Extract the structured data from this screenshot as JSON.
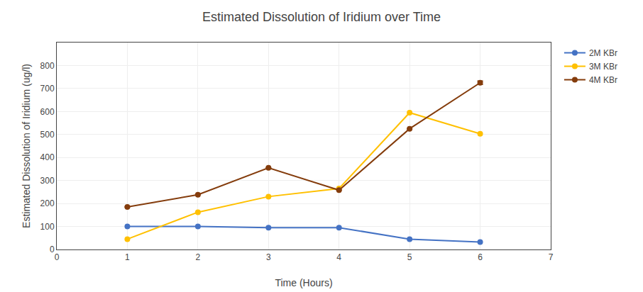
{
  "chart_data": {
    "type": "line",
    "title": "Estimated Dissolution of Iridium over Time",
    "xlabel": "Time (Hours)",
    "ylabel": "Estimated Dissolution of Iridium (ug/l)",
    "x": [
      1,
      2,
      3,
      4,
      5,
      6
    ],
    "series": [
      {
        "name": "2M KBr",
        "color": "#4472C4",
        "values": [
          100,
          100,
          95,
          95,
          45,
          32
        ]
      },
      {
        "name": "3M KBr",
        "color": "#FFC000",
        "values": [
          45,
          162,
          230,
          265,
          595,
          503
        ]
      },
      {
        "name": "4M KBr",
        "color": "#843C0C",
        "values": [
          185,
          238,
          355,
          258,
          525,
          725
        ],
        "errors": [
          null,
          null,
          null,
          null,
          null,
          8
        ]
      }
    ],
    "xlim": [
      0,
      7
    ],
    "xticks": [
      0,
      1,
      2,
      3,
      4,
      5,
      6,
      7
    ],
    "ylim": [
      0,
      900
    ],
    "yticks": [
      0,
      100,
      200,
      300,
      400,
      500,
      600,
      700,
      800
    ],
    "grid": true,
    "legend": "right",
    "marker": "circle"
  }
}
